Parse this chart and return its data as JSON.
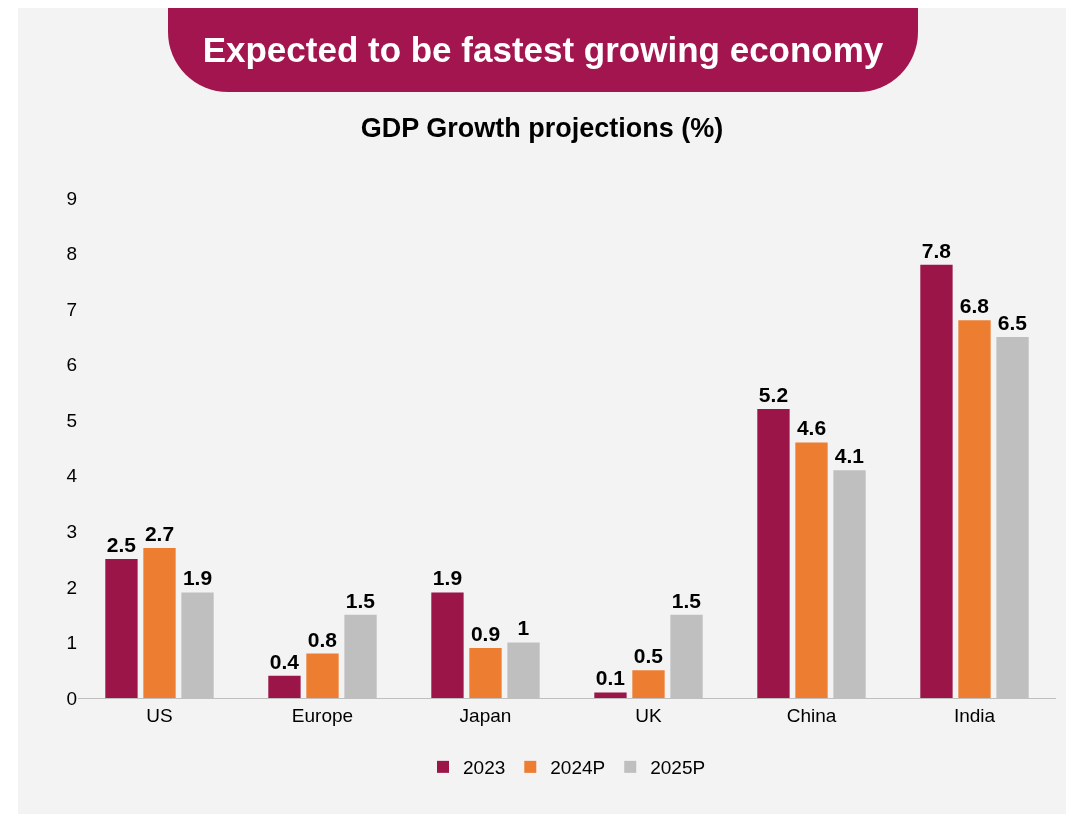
{
  "chart_data": {
    "type": "bar",
    "title": "Expected to be fastest growing economy",
    "subtitle": "GDP Growth projections (%)",
    "categories": [
      "US",
      "Europe",
      "Japan",
      "UK",
      "China",
      "India"
    ],
    "series": [
      {
        "name": "2023",
        "color": "#9b1548",
        "values": [
          2.5,
          0.4,
          1.9,
          0.1,
          5.2,
          7.8
        ]
      },
      {
        "name": "2024P",
        "color": "#ed7d31",
        "values": [
          2.7,
          0.8,
          0.9,
          0.5,
          4.6,
          6.8
        ]
      },
      {
        "name": "2025P",
        "color": "#bfbfbf",
        "values": [
          1.9,
          1.5,
          1,
          1.5,
          4.1,
          6.5
        ]
      }
    ],
    "ylim": [
      0,
      9
    ],
    "yticks": [
      0,
      1,
      2,
      3,
      4,
      5,
      6,
      7,
      8,
      9
    ],
    "grid": false,
    "legend": "bottom",
    "data_labels": true
  }
}
